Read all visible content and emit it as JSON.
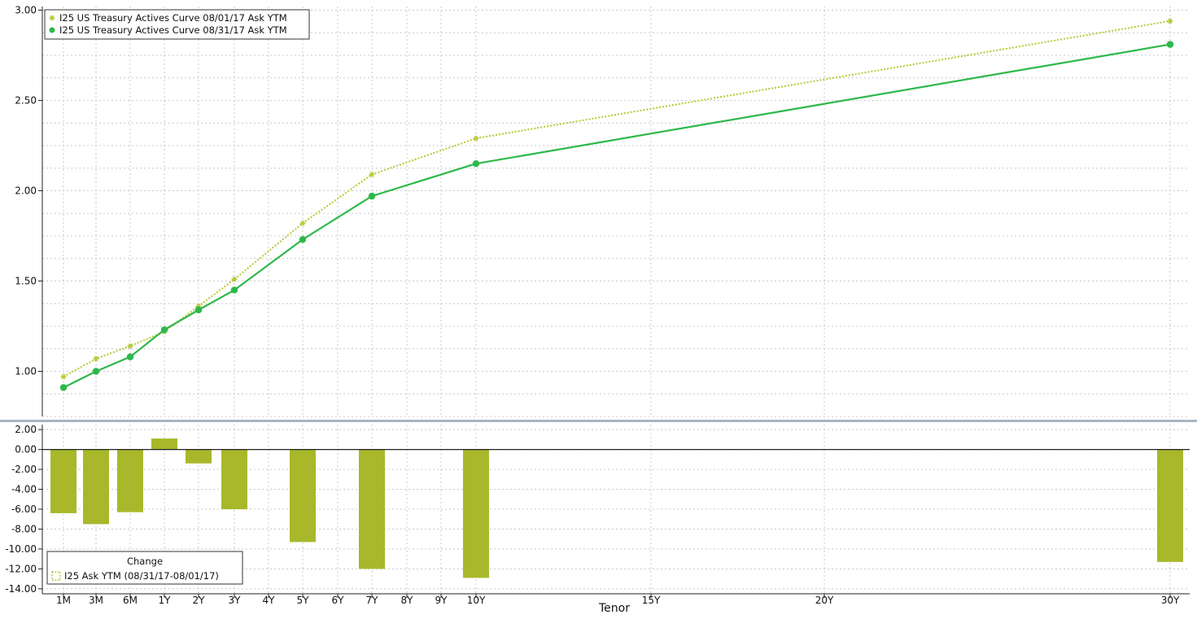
{
  "chart_data": [
    {
      "type": "line",
      "x": [
        "1M",
        "3M",
        "6M",
        "1Y",
        "2Y",
        "3Y",
        "5Y",
        "7Y",
        "10Y",
        "30Y"
      ],
      "series": [
        {
          "name": "I25 US Treasury Actives Curve 08/01/17 Ask YTM",
          "values": [
            0.97,
            1.07,
            1.14,
            1.22,
            1.36,
            1.51,
            1.82,
            2.09,
            2.29,
            2.94
          ],
          "style": "dotted",
          "marker": "star",
          "color": "#b8c832"
        },
        {
          "name": "I25 US Treasury Actives Curve 08/31/17 Ask YTM",
          "values": [
            0.91,
            1.0,
            1.08,
            1.23,
            1.34,
            1.45,
            1.73,
            1.97,
            2.15,
            2.81
          ],
          "style": "solid",
          "marker": "circle",
          "color": "#2db84a"
        }
      ],
      "yticks": [
        "3.00",
        "2.50",
        "2.00",
        "1.50",
        "1.00"
      ],
      "ylim": [
        0.75,
        3.02
      ],
      "grid": true,
      "legend_position": "top-left"
    },
    {
      "type": "bar",
      "categories": [
        "1M",
        "3M",
        "6M",
        "1Y",
        "2Y",
        "3Y",
        "5Y",
        "7Y",
        "10Y",
        "30Y"
      ],
      "series": [
        {
          "name": "I25 Ask YTM (08/31/17-08/01/17)",
          "values": [
            -6.4,
            -7.5,
            -6.3,
            1.1,
            -1.4,
            -6.0,
            -9.3,
            -12.0,
            -12.9,
            -11.3
          ],
          "color": "#a8b82a"
        }
      ],
      "legend_title": "Change",
      "yticks": [
        "2.00",
        "0.00",
        "-2.00",
        "-4.00",
        "-6.00",
        "-8.00",
        "-10.00",
        "-12.00",
        "-14.00"
      ],
      "ylim": [
        -14.5,
        2.5
      ],
      "xlabel": "Tenor",
      "xticks": [
        "1M",
        "3M",
        "6M",
        "1Y",
        "2Y",
        "3Y",
        "4Y",
        "5Y",
        "6Y",
        "7Y",
        "8Y",
        "9Y",
        "10Y",
        "15Y",
        "20Y",
        "30Y"
      ],
      "grid": true,
      "legend_position": "bottom-left"
    }
  ]
}
